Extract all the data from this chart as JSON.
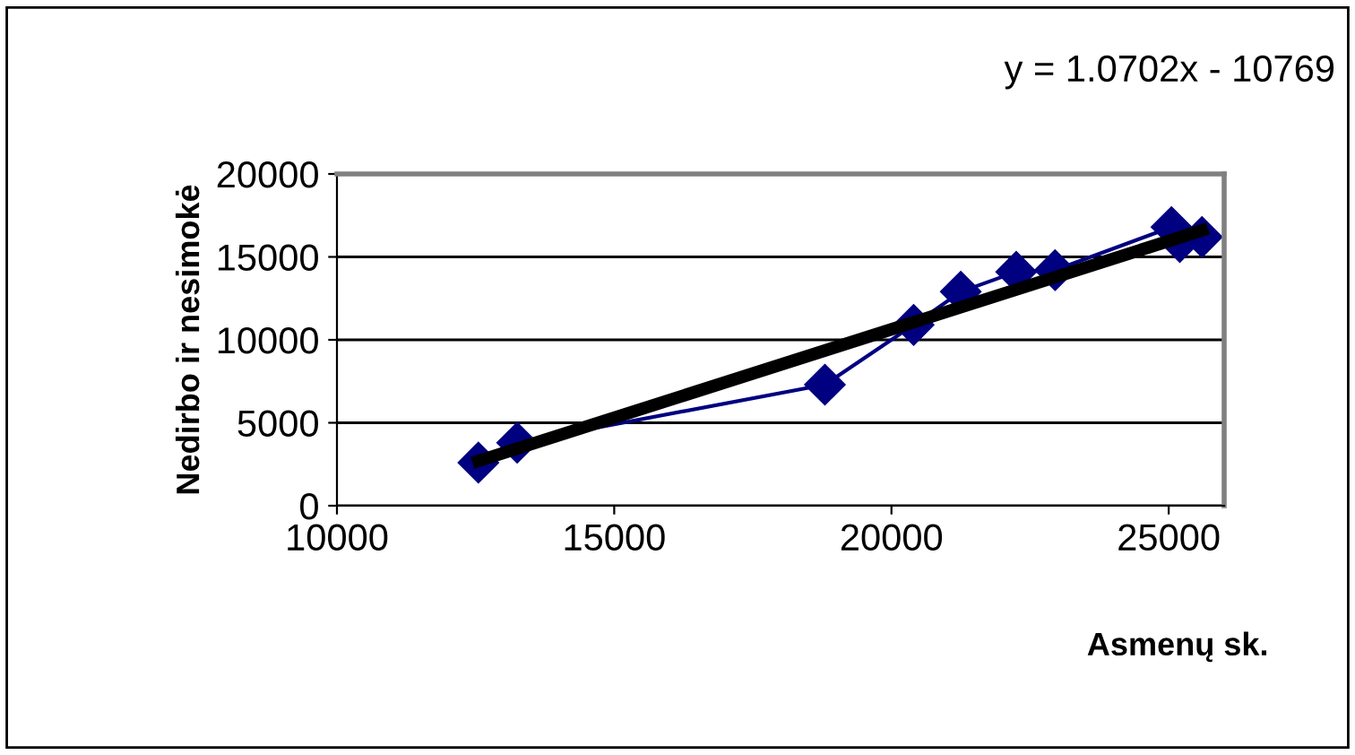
{
  "chart_data": {
    "type": "line",
    "xlabel": "Asmenų sk.",
    "ylabel": "Nedirbo ir nesimokė",
    "xlim": [
      10000,
      26000
    ],
    "xticks": [
      10000,
      15000,
      20000,
      25000
    ],
    "ylim": [
      0,
      20000
    ],
    "yticks": [
      0,
      5000,
      10000,
      15000,
      20000
    ],
    "grid": "y",
    "legend": false,
    "annotations": [
      "y = 1.0702x - 10769"
    ],
    "series": [
      {
        "marker": "diamond",
        "color": "#000080",
        "x": [
          12550,
          13250,
          18800,
          20400,
          21250,
          22250,
          22950,
          25050,
          25200,
          25600
        ],
        "values": [
          2600,
          3800,
          7300,
          10900,
          12900,
          14100,
          14200,
          16800,
          15900,
          16200
        ]
      },
      {
        "marker": "none",
        "color": "#000000",
        "x": [
          12550,
          25600
        ],
        "values": [
          2700,
          16600
        ]
      }
    ]
  }
}
